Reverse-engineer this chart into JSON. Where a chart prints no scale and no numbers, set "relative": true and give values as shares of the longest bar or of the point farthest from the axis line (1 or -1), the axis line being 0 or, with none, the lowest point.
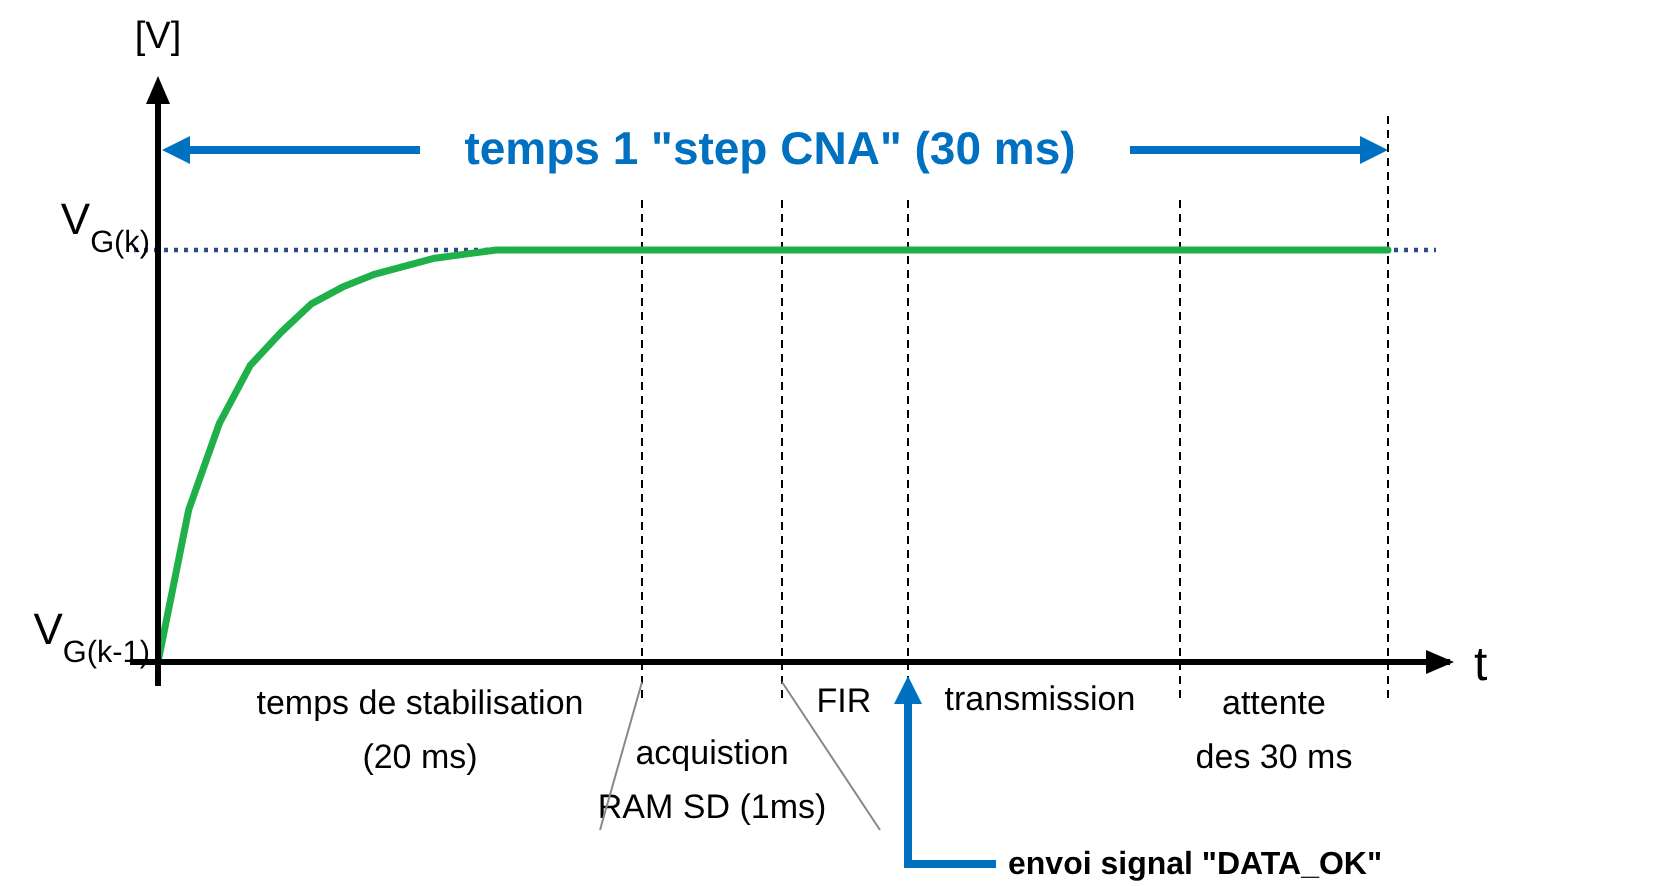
{
  "chart_data": {
    "type": "line",
    "xlabel": "t",
    "relative": true,
    "marker": "none",
    "line_style": "solid",
    "categories": [
      null,
      null,
      null,
      null,
      null,
      null,
      null,
      null,
      null,
      null,
      null,
      null,
      null,
      null,
      null,
      null,
      null,
      null,
      null,
      null,
      null,
      null,
      null,
      null,
      null,
      null,
      null,
      null,
      null,
      null,
      null,
      null,
      null,
      null,
      null,
      null,
      null,
      null,
      null,
      null,
      null
    ],
    "series": [
      {
        "color": "#1fb04a",
        "values": [
          0,
          0.37,
          0.58,
          0.72,
          0.8,
          0.87,
          0.91,
          0.94,
          0.96,
          0.98,
          0.99,
          1,
          1,
          1,
          1,
          1,
          1,
          1,
          1,
          1,
          1,
          1,
          1,
          1,
          1,
          1,
          1,
          1,
          1,
          1,
          1,
          1,
          1,
          1,
          1,
          1,
          1,
          1,
          1,
          1,
          1
        ]
      }
    ],
    "ref_lines": [
      {
        "axis": "y",
        "value": 1,
        "label": "V$_{G(k)}$",
        "color": "#2e4a8a",
        "line_style": "dotted"
      }
    ],
    "annotations": [
      "temps 1 \"step CNA\" (30 ms)",
      "temps de stabilisation\n(20 ms)",
      "acquistion\nRAM SD (1ms)",
      "FIR",
      "transmission",
      "attente\ndes 30 ms",
      "envoi signal \"DATA_OK\"",
      "V$_{G(k-1)}$",
      "[V]"
    ]
  }
}
